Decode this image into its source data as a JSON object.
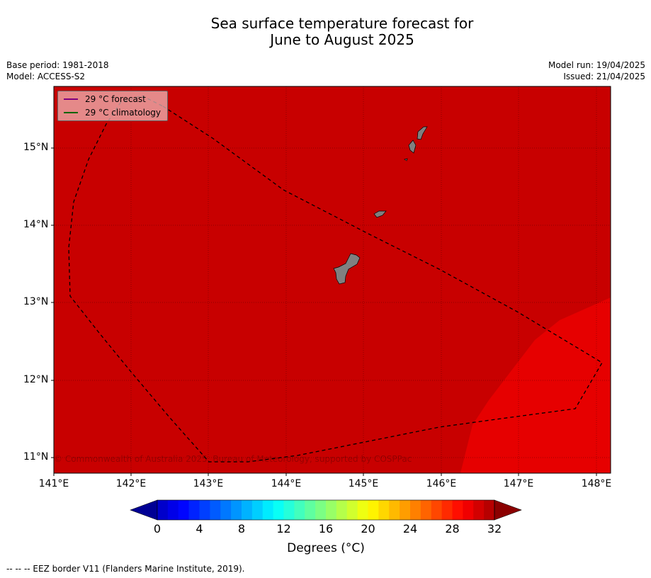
{
  "title_line1": "Sea surface temperature forecast for",
  "title_line2": "June to August 2025",
  "base_period": "Base period: 1981-2018",
  "model": "Model: ACCESS-S2",
  "model_run": "Model run: 19/04/2025",
  "issued": "Issued: 21/04/2025",
  "legend": {
    "forecast": "29 °C  forecast",
    "forecast_color": "#7f007f",
    "climatology": "29 °C  climatology",
    "climatology_color": "#006400"
  },
  "axes": {
    "lat_labels": [
      "15°N",
      "14°N",
      "13°N",
      "12°N",
      "11°N"
    ],
    "lon_labels": [
      "141°E",
      "142°E",
      "143°E",
      "144°E",
      "145°E",
      "146°E",
      "147°E",
      "148°E"
    ],
    "lat_range": [
      10.8,
      15.8
    ],
    "lon_range": [
      141.0,
      148.2
    ]
  },
  "fill_colors": {
    "main": "#c80000",
    "warm": "#e60000",
    "land": "#808080"
  },
  "copyright": "© Commonwealth of Australia 2025, Bureau of Meteorology, supported by COSPPac",
  "colorbar": {
    "ticks": [
      "0",
      "4",
      "8",
      "12",
      "16",
      "20",
      "24",
      "28",
      "32"
    ],
    "title": "Degrees (°C)",
    "range": [
      0,
      32
    ]
  },
  "footnote": "--  --  -- EEZ border V11 (Flanders Marine Institute, 2019)."
}
